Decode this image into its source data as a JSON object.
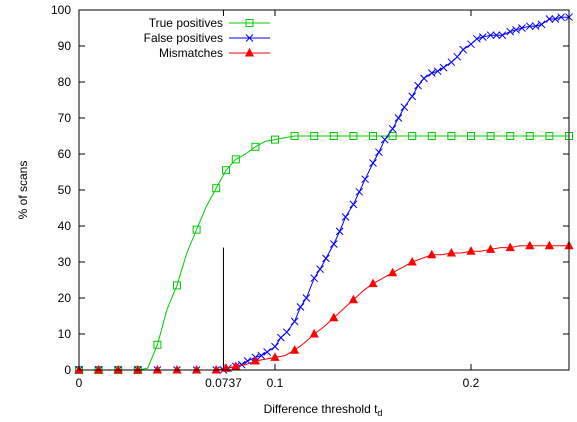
{
  "chart_data": {
    "type": "line",
    "xlabel": "Difference threshold t",
    "xlabel_subscript": "d",
    "ylabel": "% of scans",
    "xlim": [
      0,
      0.25
    ],
    "ylim": [
      0,
      100
    ],
    "xticks": [
      {
        "value": 0,
        "label": "0"
      },
      {
        "value": 0.0737,
        "label": "0.0737"
      },
      {
        "value": 0.1,
        "label": "0.1"
      },
      {
        "value": 0.2,
        "label": "0.2"
      }
    ],
    "yticks": [
      0,
      10,
      20,
      30,
      40,
      50,
      60,
      70,
      80,
      90,
      100
    ],
    "legend_position": "top-left",
    "vline": {
      "x": 0.0737,
      "y_top": 34
    },
    "series": [
      {
        "name": "True positives",
        "color": "#00cc00",
        "marker": "square",
        "x": [
          0,
          0.005,
          0.01,
          0.015,
          0.02,
          0.025,
          0.03,
          0.035,
          0.04,
          0.045,
          0.05,
          0.055,
          0.06,
          0.065,
          0.07,
          0.075,
          0.08,
          0.085,
          0.09,
          0.095,
          0.1,
          0.105,
          0.11,
          0.115,
          0.12,
          0.125,
          0.13,
          0.135,
          0.14,
          0.145,
          0.15,
          0.155,
          0.16,
          0.165,
          0.17,
          0.175,
          0.18,
          0.185,
          0.19,
          0.195,
          0.2,
          0.205,
          0.21,
          0.215,
          0.22,
          0.225,
          0.23,
          0.235,
          0.24,
          0.245,
          0.25
        ],
        "y": [
          0,
          0,
          0,
          0,
          0,
          0,
          0,
          0.5,
          7,
          17,
          23.5,
          32.5,
          39,
          45.5,
          50.5,
          55.5,
          58.5,
          60,
          62,
          63.5,
          64,
          64.5,
          65,
          65,
          65,
          65,
          65,
          65,
          65,
          65,
          65,
          65,
          65,
          65,
          65,
          65,
          65,
          65,
          65,
          65,
          65,
          65,
          65,
          65,
          65,
          65,
          65,
          65,
          65,
          65,
          65
        ],
        "marker_x": [
          0,
          0.01,
          0.02,
          0.03,
          0.04,
          0.05,
          0.06,
          0.07,
          0.075,
          0.08,
          0.09,
          0.1,
          0.11,
          0.12,
          0.13,
          0.14,
          0.15,
          0.16,
          0.17,
          0.18,
          0.19,
          0.2,
          0.21,
          0.22,
          0.23,
          0.24,
          0.25
        ]
      },
      {
        "name": "False positives",
        "color": "#0000ff",
        "marker": "cross",
        "x": [
          0,
          0.01,
          0.02,
          0.03,
          0.04,
          0.05,
          0.06,
          0.07,
          0.0737,
          0.076,
          0.08,
          0.083,
          0.086,
          0.09,
          0.093,
          0.096,
          0.1,
          0.103,
          0.106,
          0.11,
          0.113,
          0.116,
          0.12,
          0.123,
          0.126,
          0.13,
          0.133,
          0.136,
          0.14,
          0.143,
          0.146,
          0.15,
          0.153,
          0.156,
          0.16,
          0.163,
          0.166,
          0.17,
          0.173,
          0.176,
          0.18,
          0.183,
          0.186,
          0.19,
          0.193,
          0.196,
          0.2,
          0.203,
          0.206,
          0.21,
          0.213,
          0.216,
          0.22,
          0.223,
          0.226,
          0.23,
          0.233,
          0.236,
          0.24,
          0.243,
          0.246,
          0.25
        ],
        "y": [
          0,
          0,
          0,
          0,
          0,
          0,
          0,
          0,
          0,
          0.5,
          1,
          1.5,
          2.5,
          3.5,
          4,
          5,
          6.5,
          9,
          10.5,
          13.5,
          17.5,
          20,
          25.5,
          28,
          31,
          35,
          38.5,
          42.5,
          46,
          49.5,
          53,
          57.5,
          60.5,
          64,
          67,
          70,
          73,
          76,
          79,
          81,
          82.5,
          83,
          84,
          85.5,
          87,
          89,
          90.5,
          92,
          92.5,
          93,
          93,
          93,
          94,
          94.5,
          95,
          95.5,
          95.5,
          96,
          97.5,
          97.5,
          98,
          98
        ]
      },
      {
        "name": "Mismatches",
        "color": "#ff0000",
        "marker": "triangle",
        "x": [
          0,
          0.005,
          0.01,
          0.015,
          0.02,
          0.025,
          0.03,
          0.035,
          0.04,
          0.045,
          0.05,
          0.055,
          0.06,
          0.065,
          0.07,
          0.075,
          0.08,
          0.085,
          0.09,
          0.095,
          0.1,
          0.105,
          0.11,
          0.115,
          0.12,
          0.125,
          0.13,
          0.135,
          0.14,
          0.145,
          0.15,
          0.155,
          0.16,
          0.165,
          0.17,
          0.175,
          0.18,
          0.185,
          0.19,
          0.195,
          0.2,
          0.205,
          0.21,
          0.215,
          0.22,
          0.225,
          0.23,
          0.235,
          0.24,
          0.245,
          0.25
        ],
        "y": [
          0,
          0,
          0,
          0,
          0,
          0,
          0,
          0,
          0,
          0,
          0,
          0,
          0,
          0,
          0,
          0.5,
          1,
          1.5,
          2.5,
          3,
          3.5,
          4,
          5.5,
          7.5,
          10,
          12,
          14.5,
          17,
          19.5,
          22,
          24,
          25.5,
          27,
          28.5,
          30,
          31,
          32,
          32,
          32.5,
          32.5,
          33,
          33,
          33.5,
          34,
          34,
          34.5,
          34.5,
          34.5,
          34.5,
          34.5,
          34.5
        ],
        "marker_x": [
          0,
          0.01,
          0.02,
          0.03,
          0.04,
          0.05,
          0.06,
          0.07,
          0.075,
          0.08,
          0.09,
          0.1,
          0.11,
          0.12,
          0.13,
          0.14,
          0.15,
          0.16,
          0.17,
          0.18,
          0.19,
          0.2,
          0.21,
          0.22,
          0.23,
          0.24,
          0.25
        ]
      }
    ]
  }
}
